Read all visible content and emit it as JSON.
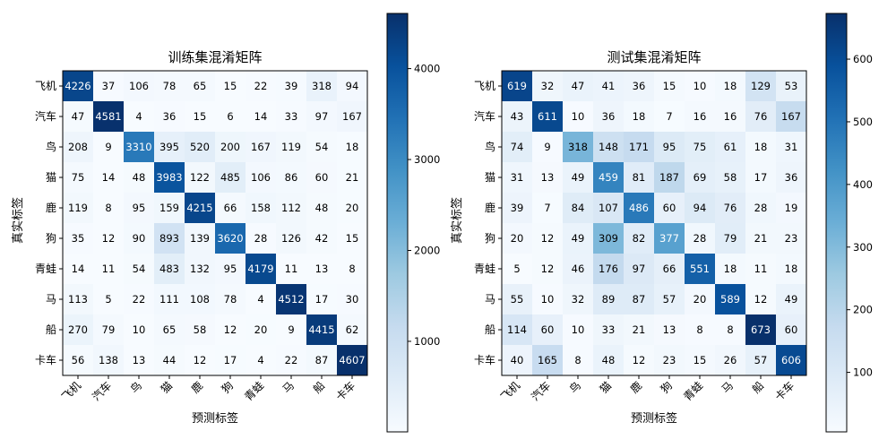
{
  "chart_data": [
    {
      "type": "heatmap",
      "title": "训练集混淆矩阵",
      "xlabel": "预测标签",
      "ylabel": "真实标签",
      "categories": [
        "飞机",
        "汽车",
        "鸟",
        "猫",
        "鹿",
        "狗",
        "青蛙",
        "马",
        "船",
        "卡车"
      ],
      "colormap": "Blues",
      "colorbar_range": [
        4,
        4607
      ],
      "colorbar_ticks": [
        1000,
        2000,
        3000,
        4000
      ],
      "text_threshold": 2305.5,
      "matrix": [
        [
          4226,
          37,
          106,
          78,
          65,
          15,
          22,
          39,
          318,
          94
        ],
        [
          47,
          4581,
          4,
          36,
          15,
          6,
          14,
          33,
          97,
          167
        ],
        [
          208,
          9,
          3310,
          395,
          520,
          200,
          167,
          119,
          54,
          18
        ],
        [
          75,
          14,
          48,
          3983,
          122,
          485,
          106,
          86,
          60,
          21
        ],
        [
          119,
          8,
          95,
          159,
          4215,
          66,
          158,
          112,
          48,
          20
        ],
        [
          35,
          12,
          90,
          893,
          139,
          3620,
          28,
          126,
          42,
          15
        ],
        [
          14,
          11,
          54,
          483,
          132,
          95,
          4179,
          11,
          13,
          8
        ],
        [
          113,
          5,
          22,
          111,
          108,
          78,
          4,
          4512,
          17,
          30
        ],
        [
          270,
          79,
          10,
          65,
          58,
          12,
          20,
          9,
          4415,
          62
        ],
        [
          56,
          138,
          13,
          44,
          12,
          17,
          4,
          22,
          87,
          4607
        ]
      ]
    },
    {
      "type": "heatmap",
      "title": "测试集混淆矩阵",
      "xlabel": "预测标签",
      "ylabel": "真实标签",
      "categories": [
        "飞机",
        "汽车",
        "鸟",
        "猫",
        "鹿",
        "狗",
        "青蛙",
        "马",
        "船",
        "卡车"
      ],
      "colormap": "Blues",
      "colorbar_range": [
        5,
        673
      ],
      "colorbar_ticks": [
        100,
        200,
        300,
        400,
        500,
        600
      ],
      "text_threshold": 339,
      "matrix": [
        [
          619,
          32,
          47,
          41,
          36,
          15,
          10,
          18,
          129,
          53
        ],
        [
          43,
          611,
          10,
          36,
          18,
          7,
          16,
          16,
          76,
          167
        ],
        [
          74,
          9,
          318,
          148,
          171,
          95,
          75,
          61,
          18,
          31
        ],
        [
          31,
          13,
          49,
          459,
          81,
          187,
          69,
          58,
          17,
          36
        ],
        [
          39,
          7,
          84,
          107,
          486,
          60,
          94,
          76,
          28,
          19
        ],
        [
          20,
          12,
          49,
          309,
          82,
          377,
          28,
          79,
          21,
          23
        ],
        [
          5,
          12,
          46,
          176,
          97,
          66,
          551,
          18,
          11,
          18
        ],
        [
          55,
          10,
          32,
          89,
          87,
          57,
          20,
          589,
          12,
          49
        ],
        [
          114,
          60,
          10,
          33,
          21,
          13,
          8,
          8,
          673,
          60
        ],
        [
          40,
          165,
          8,
          48,
          12,
          23,
          15,
          26,
          57,
          606
        ]
      ]
    }
  ]
}
